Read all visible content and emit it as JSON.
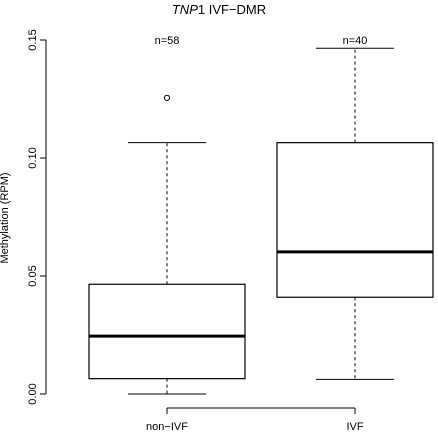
{
  "chart_data": {
    "type": "boxplot",
    "title_italic": "TNP",
    "title_rest": "1 IVF−DMR",
    "ylabel": "Methylation (RPM)",
    "ylim": [
      0,
      0.15
    ],
    "yticks": [
      "0.00",
      "0.05",
      "0.10",
      "0.15"
    ],
    "ytick_values": [
      0,
      0.05,
      0.1,
      0.15
    ],
    "categories": [
      "non−IVF",
      "IVF"
    ],
    "n_labels": [
      "n=58",
      "n=40"
    ],
    "boxes": [
      {
        "min": 0.0,
        "q1": 0.0065,
        "median": 0.0245,
        "q3": 0.0465,
        "max": 0.1065,
        "outliers": [
          0.1255
        ]
      },
      {
        "min": 0.0062,
        "q1": 0.041,
        "median": 0.0602,
        "q3": 0.1065,
        "max": 0.1465,
        "outliers": []
      }
    ],
    "grid": false
  }
}
